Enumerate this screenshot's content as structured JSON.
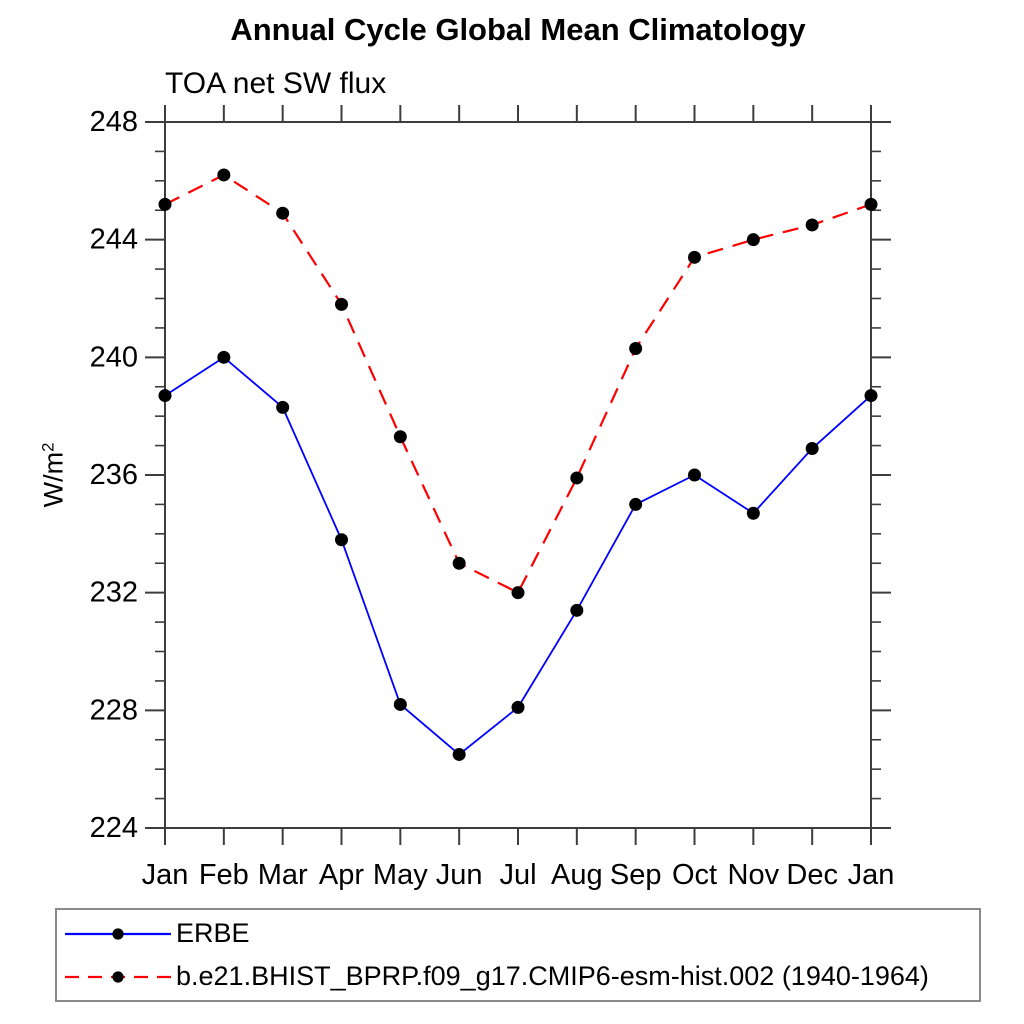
{
  "header": {
    "title": "Annual Cycle Global Mean Climatology",
    "subtitle": "TOA net SW flux"
  },
  "axes": {
    "ylabel_base": "W/m",
    "ylabel_exp": "2"
  },
  "legend": {
    "entries": [
      {
        "label": "ERBE",
        "color": "#0000ff",
        "style": "solid",
        "marker": "black-dot"
      },
      {
        "label": "b.e21.BHIST_BPRP.f09_g17.CMIP6-esm-hist.002 (1940-1964)",
        "color": "#ff0000",
        "style": "dashed",
        "marker": "black-dot"
      }
    ]
  },
  "chart_data": {
    "type": "line",
    "title": "Annual Cycle Global Mean Climatology",
    "subtitle": "TOA net SW flux",
    "ylabel": "W/m²",
    "xlabel": "",
    "categories": [
      "Jan",
      "Feb",
      "Mar",
      "Apr",
      "May",
      "Jun",
      "Jul",
      "Aug",
      "Sep",
      "Oct",
      "Nov",
      "Dec",
      "Jan"
    ],
    "series": [
      {
        "name": "ERBE",
        "color": "#0000ff",
        "line_style": "solid",
        "marker": "circle",
        "marker_color": "#000000",
        "values": [
          238.7,
          240.0,
          238.3,
          233.8,
          228.2,
          226.5,
          228.1,
          231.4,
          235.0,
          236.0,
          234.7,
          236.9,
          238.7
        ]
      },
      {
        "name": "b.e21.BHIST_BPRP.f09_g17.CMIP6-esm-hist.002 (1940-1964)",
        "color": "#ff0000",
        "line_style": "dashed",
        "marker": "circle",
        "marker_color": "#000000",
        "values": [
          245.2,
          246.2,
          244.9,
          241.8,
          237.3,
          233.0,
          232.0,
          235.9,
          240.3,
          243.4,
          244.0,
          244.5,
          245.2
        ]
      }
    ],
    "ylim": [
      224,
      248
    ],
    "yticks_major": [
      224,
      228,
      232,
      236,
      240,
      244,
      248
    ],
    "ytick_minor_step": 1,
    "grid": false,
    "legend_position": "bottom",
    "axis_color": "#3d3d3d"
  }
}
